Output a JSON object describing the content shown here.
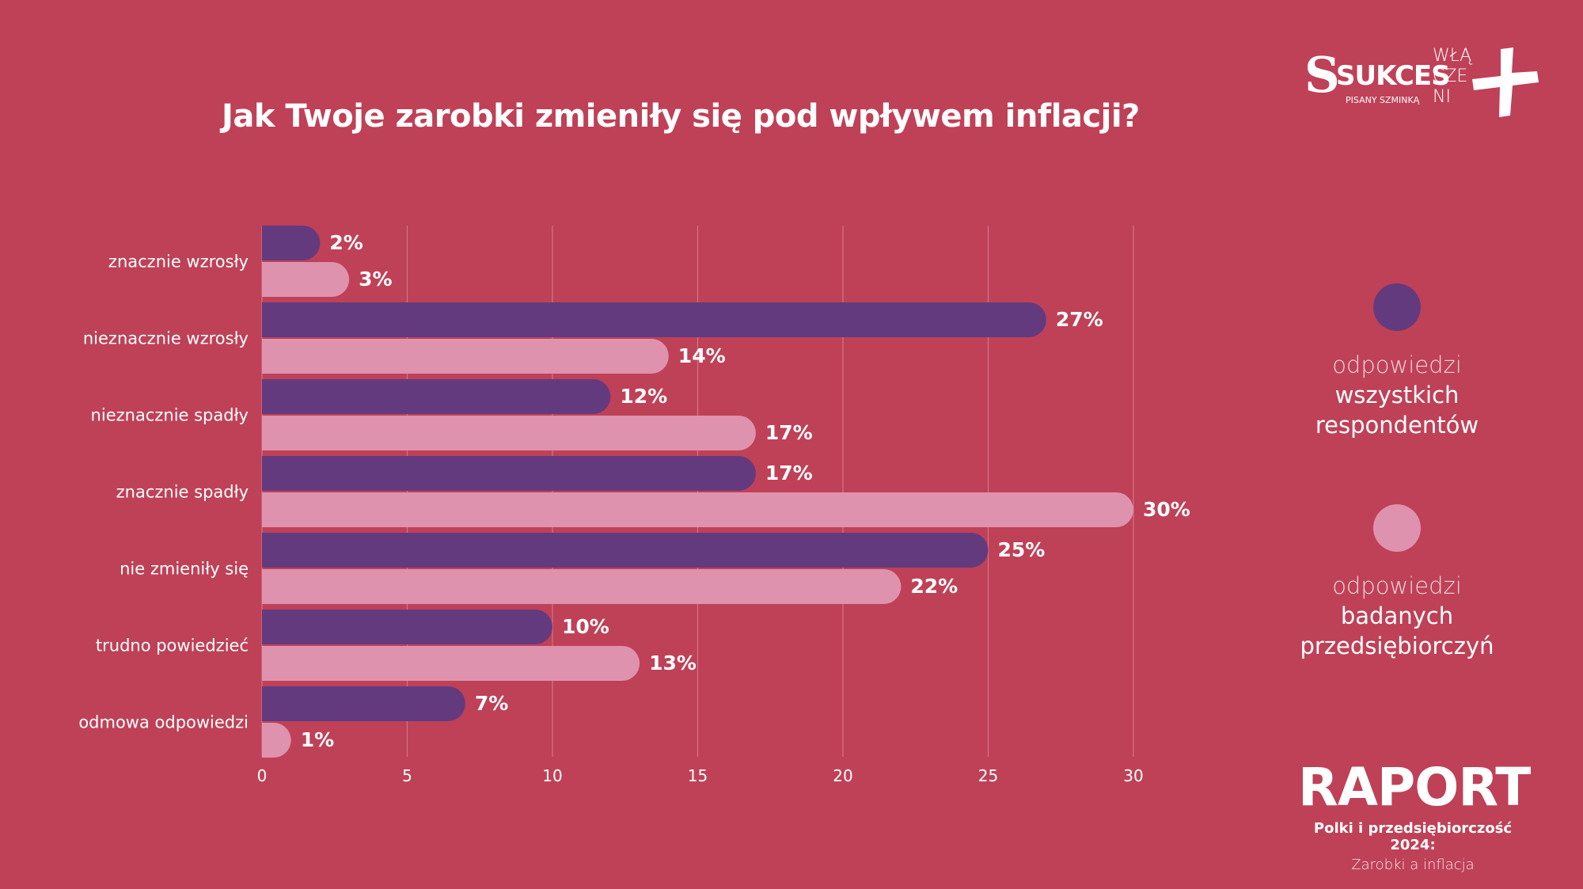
{
  "title": "Jak Twoje zarobki zmieniły się pod wpływem inflacji?",
  "logos": {
    "sukces_mark": "S",
    "sukces_word": "SUKCES",
    "sukces_sub": "PISANY SZMINKĄ",
    "wlaczeni_text": "WŁĄ CZE NI"
  },
  "legend": [
    {
      "line1": "odpowiedzi",
      "line2": "wszystkich",
      "line3": "respondentów",
      "color": "#633a7e"
    },
    {
      "line1": "odpowiedzi",
      "line2": "badanych",
      "line3": "przedsiębiorczyń",
      "color": "#df92ad"
    }
  ],
  "report": {
    "title": "RAPORT",
    "subtitle": "Polki i przedsiębiorczość 2024:",
    "subtitle2": "Zarobki a inflacja"
  },
  "chart_data": {
    "type": "bar",
    "orientation": "horizontal",
    "categories": [
      "znacznie wzrosły",
      "nieznacznie wzrosły",
      "nieznacznie spadły",
      "znacznie spadły",
      "nie zmieniły się",
      "trudno powiedzieć",
      "odmowa odpowiedzi"
    ],
    "series": [
      {
        "name": "odpowiedzi wszystkich respondentów",
        "color": "#633a7e",
        "values": [
          2,
          27,
          12,
          17,
          25,
          10,
          7
        ],
        "labels": [
          "2%",
          "27%",
          "12%",
          "17%",
          "25%",
          "10%",
          "7%"
        ]
      },
      {
        "name": "odpowiedzi badanych przedsiębiorczyń",
        "color": "#df92ad",
        "values": [
          3,
          14,
          17,
          30,
          22,
          13,
          1
        ],
        "labels": [
          "3%",
          "14%",
          "17%",
          "30%",
          "22%",
          "13%",
          "1%"
        ]
      }
    ],
    "xticks": [
      0,
      5,
      10,
      15,
      20,
      25,
      30
    ],
    "xlim": [
      0,
      32
    ],
    "grid": true,
    "legend_position": "right"
  }
}
